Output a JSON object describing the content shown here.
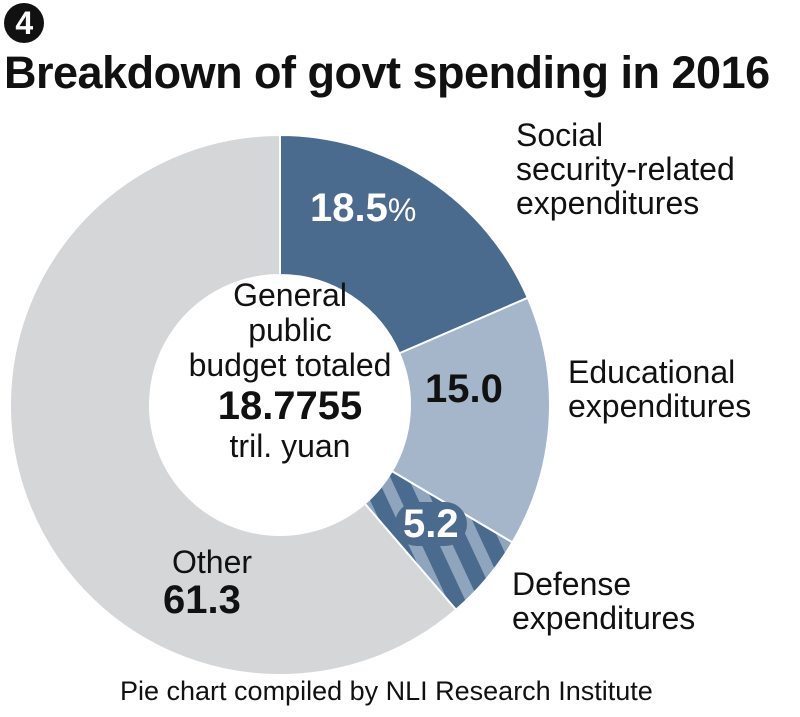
{
  "title": {
    "number": "4",
    "text": "Breakdown of govt spending in 2016"
  },
  "center": {
    "line1": "General",
    "line2": "public",
    "line3": "budget totaled",
    "value": "18.7755",
    "unit": "tril. yuan"
  },
  "footer": "Pie chart compiled by NLI Research Institute",
  "chart_data": {
    "type": "pie",
    "donut": true,
    "title": "Breakdown of govt spending in 2016",
    "unit": "%",
    "slices": [
      {
        "label": "Social security-related expenditures",
        "label_lines": [
          "Social",
          "security-related",
          "expenditures"
        ],
        "value": 18.5,
        "value_label": "18.5",
        "suffix": "%",
        "color": "#4a6a8e"
      },
      {
        "label": "Educational expenditures",
        "label_lines": [
          "Educational",
          "expenditures"
        ],
        "value": 15.0,
        "value_label": "15.0",
        "color": "#a5b6cb"
      },
      {
        "label": "Defense expenditures",
        "label_lines": [
          "Defense",
          "expenditures"
        ],
        "value": 5.2,
        "value_label": "5.2",
        "color": "#4a6a8e",
        "pattern": "hatched",
        "pattern_color": "#8fa4bd"
      },
      {
        "label": "Other",
        "label_lines": [
          "Other"
        ],
        "value": 61.3,
        "value_label": "61.3",
        "color": "#d5d6d8"
      }
    ]
  }
}
